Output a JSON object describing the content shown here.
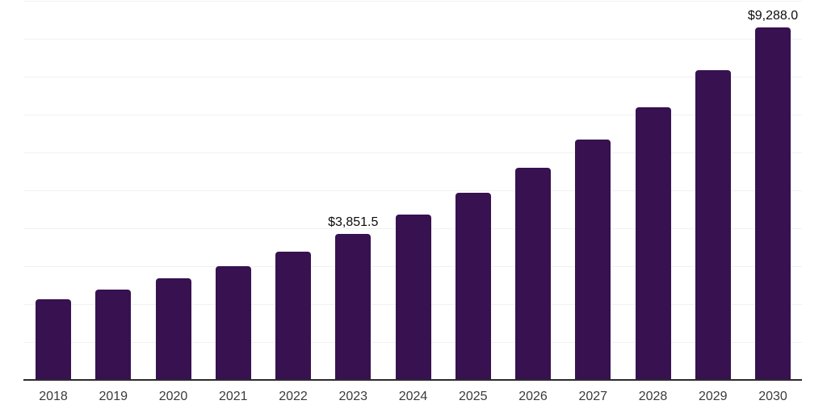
{
  "chart_data": {
    "type": "bar",
    "title": "",
    "xlabel": "",
    "ylabel": "",
    "categories": [
      "2018",
      "2019",
      "2020",
      "2021",
      "2022",
      "2023",
      "2024",
      "2025",
      "2026",
      "2027",
      "2028",
      "2029",
      "2030"
    ],
    "values": [
      2130,
      2380,
      2680,
      3010,
      3390,
      3851.5,
      4360,
      4940,
      5590,
      6350,
      7200,
      8180,
      9288
    ],
    "bar_labels": [
      "",
      "",
      "",
      "",
      "",
      "$3,851.5",
      "",
      "",
      "",
      "",
      "",
      "",
      "$9,288.0"
    ],
    "ylim": [
      0,
      10000
    ],
    "grid_interval": 1000,
    "grid": "horizontal",
    "legend_position": "none",
    "y_axis_tick_labels_visible": false,
    "colors": {
      "bar": "#371150",
      "grid": "#f1f1f1",
      "axis": "#2b2b2b",
      "value_label": "#0c0c0c",
      "tick_label": "#3a3a3a",
      "background": "#ffffff"
    }
  }
}
